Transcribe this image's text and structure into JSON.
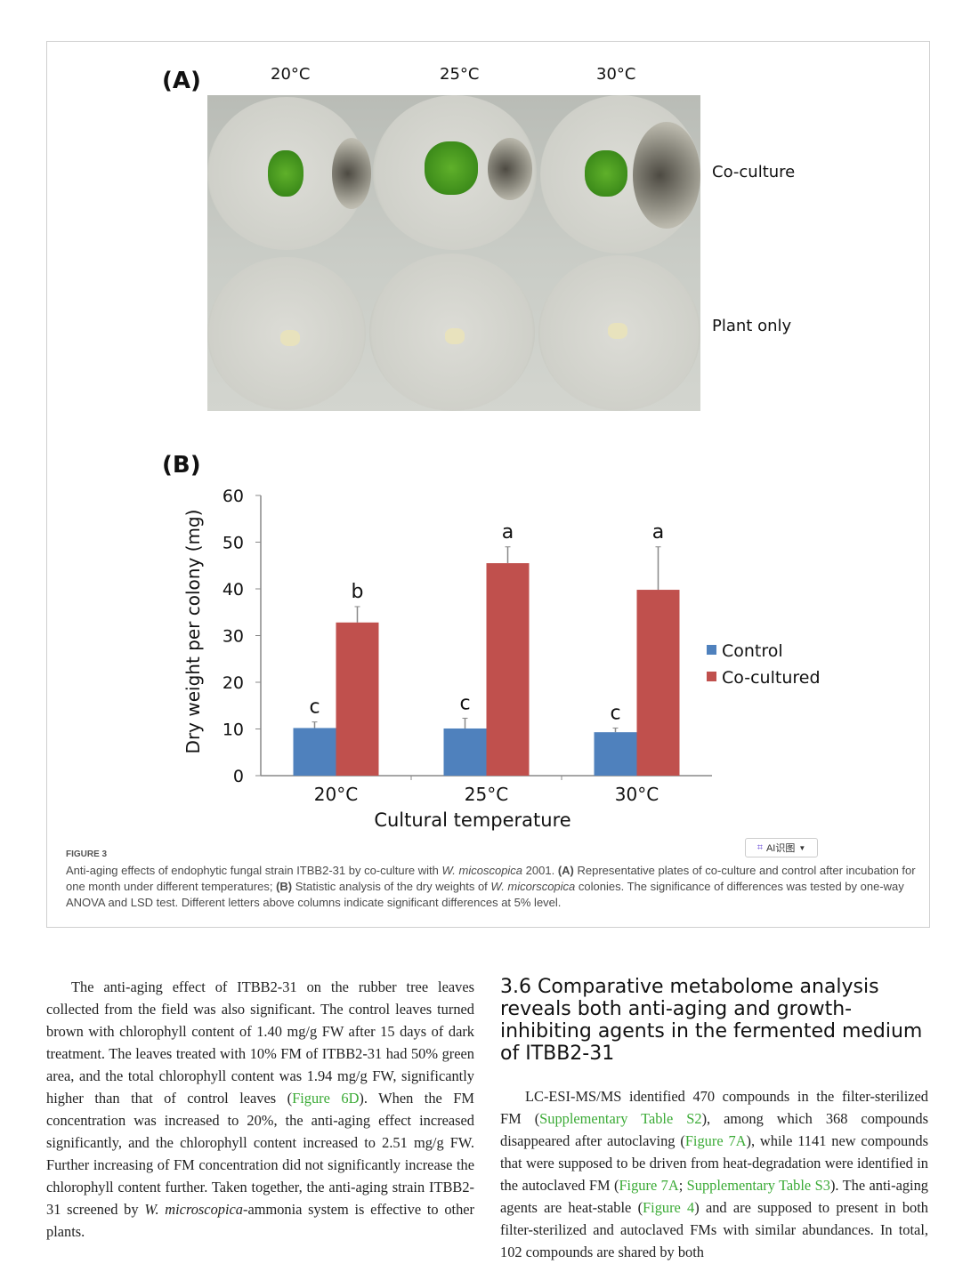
{
  "figure": {
    "panel_a_label": "(A)",
    "panel_b_label": "(B)",
    "temps": [
      "20°C",
      "25°C",
      "30°C"
    ],
    "row_labels": [
      "Co-culture",
      "Plant only"
    ],
    "caption_label": "FIGURE 3",
    "caption_parts": {
      "t1": "Anti-aging effects of endophytic fungal strain ITBB2-31 by co-culture with ",
      "i1": "W. micoscopica",
      "t2": " 2001. ",
      "b1": "(A)",
      "t3": " Representative plates of co-culture and control after incubation for one month under different temperatures; ",
      "b2": "(B)",
      "t4": " Statistic analysis of the dry weights of ",
      "i2": "W. micorscopica",
      "t5": " colonies. The significance of differences was tested by one-way ANOVA and LSD test. Different letters above columns indicate significant differences at 5% level."
    },
    "ai_button": "AI识图"
  },
  "chart_data": {
    "type": "bar",
    "categories": [
      "20°C",
      "25°C",
      "30°C"
    ],
    "xlabel": "Cultural temperature",
    "ylabel": "Dry weight per colony (mg)",
    "ylim": [
      0,
      60
    ],
    "yticks": [
      0,
      10,
      20,
      30,
      40,
      50,
      60
    ],
    "grid": false,
    "legend_position": "right",
    "series": [
      {
        "name": "Control",
        "color": "#4f81bd",
        "values": [
          10.2,
          10.1,
          9.3
        ],
        "errors": [
          1.3,
          2.2,
          0.9
        ],
        "letters": [
          "c",
          "c",
          "c"
        ]
      },
      {
        "name": "Co-cultured",
        "color": "#c0504d",
        "values": [
          32.8,
          45.5,
          39.8
        ],
        "errors": [
          3.4,
          3.5,
          9.2
        ],
        "letters": [
          "b",
          "a",
          "a"
        ]
      }
    ]
  },
  "body": {
    "left": {
      "p1": "The anti-aging effect of ITBB2-31 on the rubber tree leaves collected from the field was also significant. The control leaves turned brown with chlorophyll content of 1.40 mg/g FW after 15 days of dark treatment. The leaves treated with 10% FM of ITBB2-31 had 50% green area, and the total chlorophyll content was 1.94 mg/g FW, significantly higher than that of control leaves (",
      "link1": "Figure 6D",
      "p2": "). When the FM concentration was increased to 20%, the anti-aging effect increased significantly, and the chlorophyll content increased to 2.51 mg/g FW. Further increasing of FM concentration did not significantly increase the chlorophyll content further. Taken together, the anti-aging strain ITBB2-31 screened by ",
      "i1": "W. microscopica",
      "p3": "-ammonia system is effective to other plants."
    },
    "heading": "3.6 Comparative metabolome analysis reveals both anti-aging and growth-inhibiting agents in the fermented medium of ITBB2-31",
    "right": {
      "t1": "LC-ESI-MS/MS identified 470 compounds in the filter-sterilized FM (",
      "l1": "Supplementary Table S2",
      "t2": "), among which 368 compounds disappeared after autoclaving (",
      "l2": "Figure 7A",
      "t3": "), while 1141 new compounds that were supposed to be driven from heat-degradation were identified in the autoclaved FM (",
      "l3": "Figure 7A",
      "t4": "; ",
      "l4": "Supplementary Table S3",
      "t5": "). The anti-aging agents are heat-stable (",
      "l5": "Figure 4",
      "t6": ") and are supposed to present in both filter-sterilized and autoclaved FMs with similar abundances. In total, 102 compounds are shared by both"
    }
  }
}
